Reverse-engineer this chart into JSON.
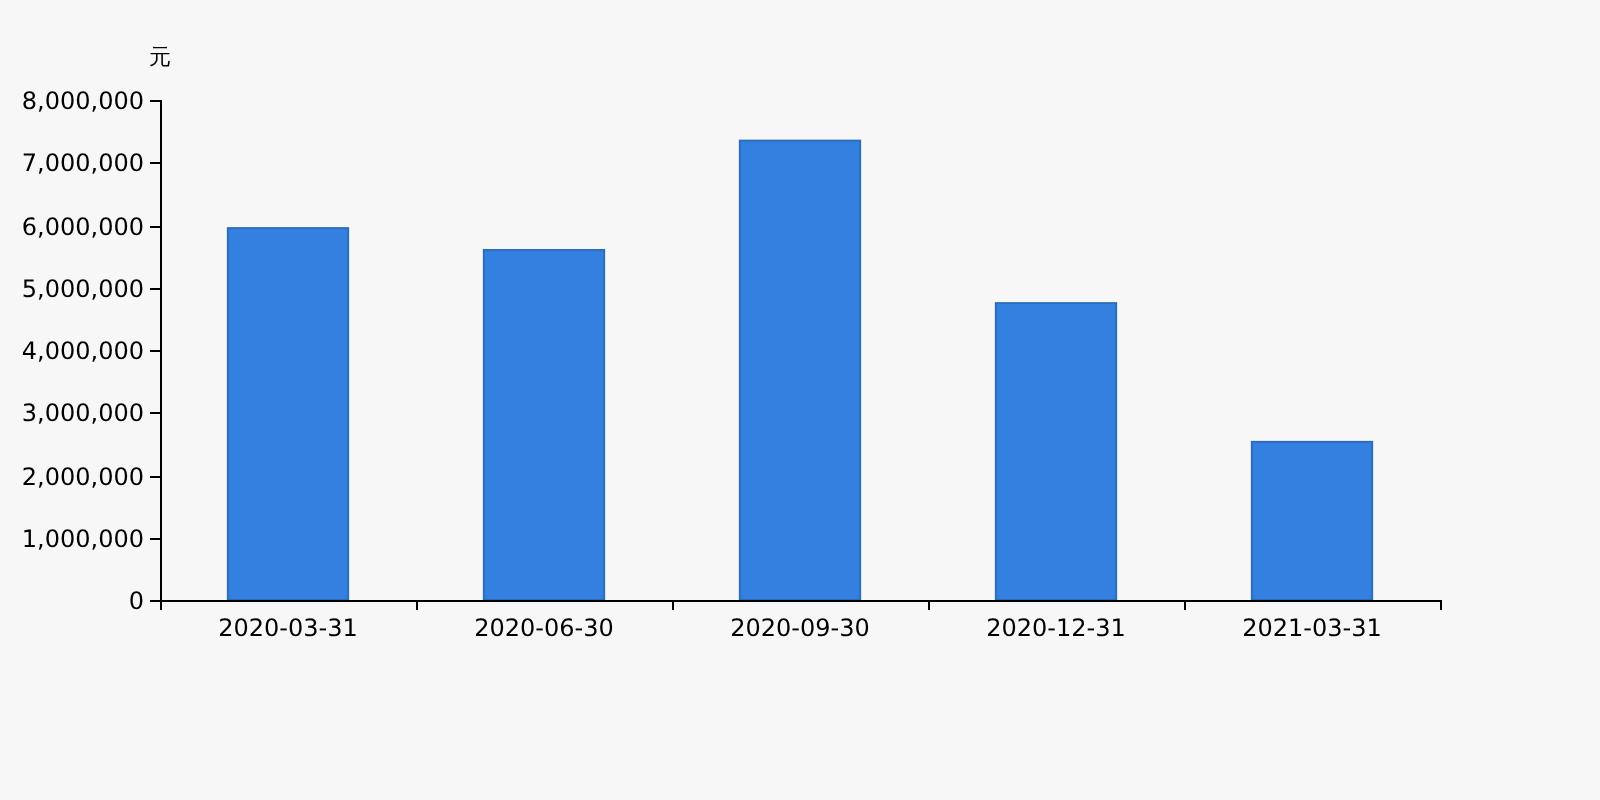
{
  "chart_data": {
    "type": "bar",
    "ylabel": "元",
    "categories": [
      "2020-03-31",
      "2020-06-30",
      "2020-09-30",
      "2020-12-31",
      "2021-03-31"
    ],
    "values": [
      5950000,
      5600000,
      7350000,
      4750000,
      2530000
    ],
    "color": "#3480e0",
    "ylim": [
      0,
      8000000
    ],
    "yticks": [
      0,
      {
        "value": 1000000,
        "label": "1,000,000"
      },
      {
        "value": 2000000,
        "label": "2,000,000"
      },
      {
        "value": 3000000,
        "label": "3,000,000"
      },
      {
        "value": 4000000,
        "label": "4,000,000"
      },
      {
        "value": 5000000,
        "label": "5,000,000"
      },
      {
        "value": 6000000,
        "label": "6,000,000"
      },
      {
        "value": 7000000,
        "label": "7,000,000"
      },
      {
        "value": 8000000,
        "label": "8,000,000"
      }
    ]
  }
}
